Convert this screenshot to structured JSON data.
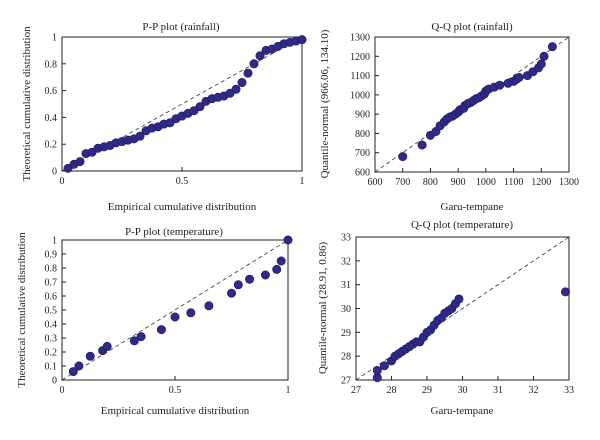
{
  "colors": {
    "marker": "#2f2a86",
    "marker_edge": "#1e1a66",
    "reference_line": "#333333"
  },
  "chart_data": [
    {
      "id": "pp_rainfall",
      "type": "scatter",
      "title": "P-P plot (rainfall)",
      "xlabel": "Empirical cumulative distribution",
      "ylabel": "Theoretical cumulative distribution",
      "xlim": [
        0,
        1
      ],
      "ylim": [
        0,
        1
      ],
      "xticks": [
        0,
        0.5,
        1
      ],
      "xtick_labels": [
        "0",
        "0.5",
        "1"
      ],
      "yticks": [
        0,
        0.2,
        0.4,
        0.6,
        0.8,
        1
      ],
      "ytick_labels": [
        "0",
        "0.2",
        "0.4",
        "0.6",
        "0.8",
        "1"
      ],
      "reference_line": [
        [
          0,
          0
        ],
        [
          1,
          1
        ]
      ],
      "grid": false,
      "x": [
        0.025,
        0.05,
        0.075,
        0.1,
        0.125,
        0.15,
        0.175,
        0.2,
        0.225,
        0.25,
        0.275,
        0.3,
        0.325,
        0.35,
        0.375,
        0.4,
        0.425,
        0.45,
        0.475,
        0.5,
        0.525,
        0.55,
        0.575,
        0.6,
        0.625,
        0.65,
        0.675,
        0.7,
        0.725,
        0.75,
        0.775,
        0.8,
        0.825,
        0.85,
        0.875,
        0.9,
        0.925,
        0.95,
        0.975,
        1.0
      ],
      "y": [
        0.02,
        0.05,
        0.07,
        0.13,
        0.14,
        0.17,
        0.18,
        0.19,
        0.21,
        0.22,
        0.23,
        0.24,
        0.26,
        0.3,
        0.32,
        0.33,
        0.35,
        0.36,
        0.39,
        0.41,
        0.43,
        0.45,
        0.48,
        0.52,
        0.54,
        0.55,
        0.56,
        0.58,
        0.61,
        0.66,
        0.73,
        0.8,
        0.86,
        0.9,
        0.91,
        0.93,
        0.95,
        0.96,
        0.97,
        0.98
      ]
    },
    {
      "id": "qq_rainfall",
      "type": "scatter",
      "title": "Q-Q plot (rainfall)",
      "xlabel": "Garu-tempane",
      "ylabel": "Quantile-normal (966.06, 134.10)",
      "xlim": [
        600,
        1300
      ],
      "ylim": [
        600,
        1300
      ],
      "xticks": [
        600,
        700,
        800,
        900,
        1000,
        1100,
        1200,
        1300
      ],
      "xtick_labels": [
        "600",
        "700",
        "800",
        "900",
        "1000",
        "1100",
        "1200",
        "1300"
      ],
      "yticks": [
        600,
        700,
        800,
        900,
        1000,
        1100,
        1200,
        1300
      ],
      "ytick_labels": [
        "600",
        "700",
        "800",
        "900",
        "1000",
        "1100",
        "1200",
        "1300"
      ],
      "reference_line": [
        [
          600,
          600
        ],
        [
          1300,
          1300
        ]
      ],
      "grid": false,
      "x": [
        700,
        770,
        800,
        820,
        835,
        850,
        860,
        870,
        880,
        890,
        900,
        905,
        910,
        920,
        925,
        935,
        945,
        955,
        965,
        975,
        985,
        995,
        1000,
        1010,
        1030,
        1050,
        1080,
        1100,
        1110,
        1120,
        1150,
        1170,
        1190,
        1200,
        1210,
        1240
      ],
      "y": [
        680,
        740,
        790,
        810,
        840,
        860,
        875,
        885,
        890,
        900,
        910,
        920,
        925,
        930,
        945,
        955,
        960,
        970,
        980,
        985,
        995,
        1005,
        1020,
        1030,
        1040,
        1050,
        1060,
        1070,
        1080,
        1090,
        1100,
        1120,
        1140,
        1160,
        1200,
        1250
      ]
    },
    {
      "id": "pp_temperature",
      "type": "scatter",
      "title": "P-P plot (temperature)",
      "xlabel": "Empirical cumulative distribution",
      "ylabel": "Theoretical cumulative distribution",
      "xlim": [
        0,
        1
      ],
      "ylim": [
        0,
        1
      ],
      "xticks": [
        0,
        0.5,
        1
      ],
      "xtick_labels": [
        "0",
        "0.5",
        "1"
      ],
      "yticks": [
        0,
        0.1,
        0.2,
        0.3,
        0.4,
        0.5,
        0.6,
        0.7,
        0.8,
        0.9,
        1
      ],
      "ytick_labels": [
        "0",
        "0.1",
        "0.2",
        "0.3",
        "0.4",
        "0.5",
        "0.6",
        "0.7",
        "0.8",
        "0.9",
        "1"
      ],
      "reference_line": [
        [
          0,
          0
        ],
        [
          1,
          1
        ]
      ],
      "grid": false,
      "x": [
        0.05,
        0.075,
        0.125,
        0.18,
        0.2,
        0.32,
        0.35,
        0.44,
        0.5,
        0.57,
        0.65,
        0.75,
        0.78,
        0.83,
        0.9,
        0.95,
        0.97,
        1.0
      ],
      "y": [
        0.06,
        0.1,
        0.17,
        0.21,
        0.24,
        0.28,
        0.31,
        0.36,
        0.45,
        0.48,
        0.53,
        0.62,
        0.68,
        0.72,
        0.75,
        0.79,
        0.85,
        1.0
      ]
    },
    {
      "id": "qq_temperature",
      "type": "scatter",
      "title": "Q-Q plot (temperature)",
      "xlabel": "Garu-tempane",
      "ylabel": "Quantile-normal (28.91, 0.86)",
      "xlim": [
        27,
        33
      ],
      "ylim": [
        27,
        33
      ],
      "xticks": [
        27,
        28,
        29,
        30,
        31,
        32,
        33
      ],
      "xtick_labels": [
        "27",
        "28",
        "29",
        "30",
        "31",
        "32",
        "33"
      ],
      "yticks": [
        27,
        28,
        29,
        30,
        31,
        32,
        33
      ],
      "ytick_labels": [
        "27",
        "28",
        "29",
        "30",
        "31",
        "32",
        "33"
      ],
      "reference_line": [
        [
          27,
          27
        ],
        [
          33,
          33
        ]
      ],
      "grid": false,
      "x": [
        27.6,
        27.6,
        27.8,
        28.0,
        28.1,
        28.2,
        28.3,
        28.4,
        28.5,
        28.6,
        28.7,
        28.8,
        28.9,
        29.0,
        29.1,
        29.2,
        29.3,
        29.4,
        29.5,
        29.6,
        29.7,
        29.8,
        29.9,
        32.9
      ],
      "y": [
        27.1,
        27.4,
        27.6,
        27.8,
        28.0,
        28.1,
        28.2,
        28.3,
        28.4,
        28.5,
        28.6,
        28.6,
        28.8,
        29.0,
        29.1,
        29.3,
        29.5,
        29.6,
        29.8,
        29.9,
        30.0,
        30.2,
        30.4,
        30.7
      ]
    }
  ]
}
